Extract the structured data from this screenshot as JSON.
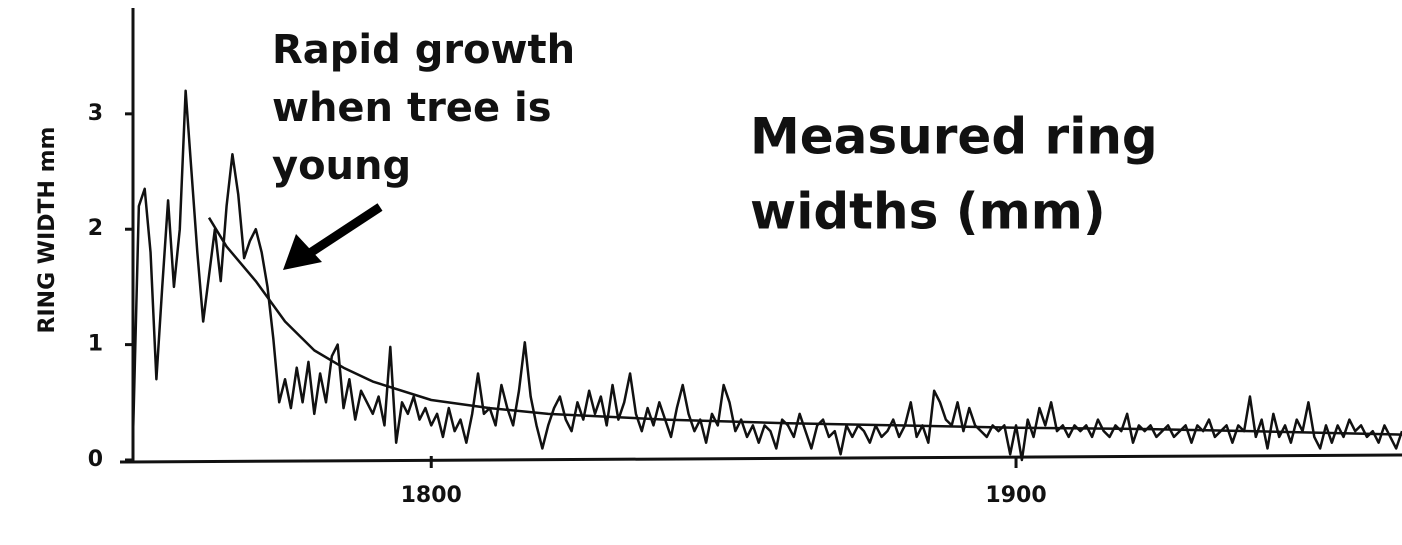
{
  "chart_data": {
    "type": "line",
    "y_label": "RING WIDTH mm",
    "annotations": [
      {
        "lines": [
          "Rapid growth",
          "when tree is",
          "young"
        ]
      },
      {
        "lines": [
          "Measured ring",
          "widths (mm)"
        ]
      }
    ],
    "xlim": [
      1749,
      1966
    ],
    "ylim": [
      0,
      3.9
    ],
    "xticks": [
      1800,
      1900
    ],
    "yticks": [
      0,
      1,
      2,
      3
    ],
    "series": [
      {
        "color": "#111111",
        "x": [
          1749,
          1750,
          1751,
          1752,
          1753,
          1754,
          1755,
          1756,
          1757,
          1758,
          1759,
          1760,
          1761,
          1762,
          1763,
          1764,
          1765,
          1766,
          1767,
          1768,
          1769,
          1770,
          1771,
          1772,
          1773,
          1774,
          1775,
          1776,
          1777,
          1778,
          1779,
          1780,
          1781,
          1782,
          1783,
          1784,
          1785,
          1786,
          1787,
          1788,
          1789,
          1790,
          1791,
          1792,
          1793,
          1794,
          1795,
          1796,
          1797,
          1798,
          1799,
          1800,
          1801,
          1802,
          1803,
          1804,
          1805,
          1806,
          1807,
          1808,
          1809,
          1810,
          1811,
          1812,
          1813,
          1814,
          1815,
          1816,
          1817,
          1818,
          1819,
          1820,
          1821,
          1822,
          1823,
          1824,
          1825,
          1826,
          1827,
          1828,
          1829,
          1830,
          1831,
          1832,
          1833,
          1834,
          1835,
          1836,
          1837,
          1838,
          1839,
          1840,
          1841,
          1842,
          1843,
          1844,
          1845,
          1846,
          1847,
          1848,
          1849,
          1850,
          1851,
          1852,
          1853,
          1854,
          1855,
          1856,
          1857,
          1858,
          1859,
          1860,
          1861,
          1862,
          1863,
          1864,
          1865,
          1866,
          1867,
          1868,
          1869,
          1870,
          1871,
          1872,
          1873,
          1874,
          1875,
          1876,
          1877,
          1878,
          1879,
          1880,
          1881,
          1882,
          1883,
          1884,
          1885,
          1886,
          1887,
          1888,
          1889,
          1890,
          1891,
          1892,
          1893,
          1894,
          1895,
          1896,
          1897,
          1898,
          1899,
          1900,
          1901,
          1902,
          1903,
          1904,
          1905,
          1906,
          1907,
          1908,
          1909,
          1910,
          1911,
          1912,
          1913,
          1914,
          1915,
          1916,
          1917,
          1918,
          1919,
          1920,
          1921,
          1922,
          1923,
          1924,
          1925,
          1926,
          1927,
          1928,
          1929,
          1930,
          1931,
          1932,
          1933,
          1934,
          1935,
          1936,
          1937,
          1938,
          1939,
          1940,
          1941,
          1942,
          1943,
          1944,
          1945,
          1946,
          1947,
          1948,
          1949,
          1950,
          1951,
          1952,
          1953,
          1954,
          1955,
          1956,
          1957,
          1958,
          1959,
          1960,
          1961,
          1962,
          1963,
          1964,
          1965,
          1966
        ],
        "values": [
          0.2,
          2.2,
          2.35,
          1.8,
          0.7,
          1.5,
          2.25,
          1.5,
          2.0,
          3.2,
          2.5,
          1.8,
          1.2,
          1.6,
          2.0,
          1.55,
          2.2,
          2.65,
          2.3,
          1.75,
          1.9,
          2.0,
          1.8,
          1.5,
          1.05,
          0.5,
          0.7,
          0.45,
          0.8,
          0.5,
          0.85,
          0.4,
          0.75,
          0.5,
          0.9,
          1.0,
          0.45,
          0.7,
          0.35,
          0.6,
          0.5,
          0.4,
          0.55,
          0.3,
          0.98,
          0.15,
          0.5,
          0.4,
          0.55,
          0.35,
          0.45,
          0.3,
          0.4,
          0.2,
          0.45,
          0.25,
          0.35,
          0.15,
          0.4,
          0.75,
          0.4,
          0.45,
          0.3,
          0.65,
          0.45,
          0.3,
          0.6,
          1.02,
          0.55,
          0.3,
          0.1,
          0.3,
          0.45,
          0.55,
          0.35,
          0.25,
          0.5,
          0.35,
          0.6,
          0.4,
          0.55,
          0.3,
          0.65,
          0.35,
          0.5,
          0.75,
          0.4,
          0.25,
          0.45,
          0.3,
          0.5,
          0.35,
          0.2,
          0.45,
          0.65,
          0.4,
          0.25,
          0.35,
          0.15,
          0.4,
          0.3,
          0.65,
          0.5,
          0.25,
          0.35,
          0.2,
          0.3,
          0.15,
          0.3,
          0.25,
          0.1,
          0.35,
          0.3,
          0.2,
          0.4,
          0.25,
          0.1,
          0.3,
          0.35,
          0.2,
          0.25,
          0.05,
          0.3,
          0.2,
          0.3,
          0.25,
          0.15,
          0.3,
          0.2,
          0.25,
          0.35,
          0.2,
          0.3,
          0.5,
          0.2,
          0.3,
          0.15,
          0.6,
          0.5,
          0.35,
          0.3,
          0.5,
          0.25,
          0.45,
          0.3,
          0.25,
          0.2,
          0.3,
          0.25,
          0.3,
          0.05,
          0.3,
          0.0,
          0.35,
          0.2,
          0.45,
          0.3,
          0.5,
          0.25,
          0.3,
          0.2,
          0.3,
          0.25,
          0.3,
          0.2,
          0.35,
          0.25,
          0.2,
          0.3,
          0.25,
          0.4,
          0.15,
          0.3,
          0.25,
          0.3,
          0.2,
          0.25,
          0.3,
          0.2,
          0.25,
          0.3,
          0.15,
          0.3,
          0.25,
          0.35,
          0.2,
          0.25,
          0.3,
          0.15,
          0.3,
          0.25,
          0.55,
          0.2,
          0.35,
          0.1,
          0.4,
          0.2,
          0.3,
          0.15,
          0.35,
          0.25,
          0.5,
          0.2,
          0.1,
          0.3,
          0.15,
          0.3,
          0.2,
          0.35,
          0.25,
          0.3,
          0.2,
          0.25,
          0.15,
          0.3,
          0.2,
          0.1,
          0.25
        ]
      },
      {
        "color": "#111111",
        "x": [
          1762,
          1765,
          1770,
          1775,
          1780,
          1785,
          1790,
          1800,
          1810,
          1820,
          1840,
          1860,
          1880,
          1900,
          1920,
          1940,
          1966
        ],
        "values": [
          2.1,
          1.85,
          1.55,
          1.2,
          0.95,
          0.8,
          0.68,
          0.52,
          0.45,
          0.4,
          0.35,
          0.32,
          0.3,
          0.28,
          0.27,
          0.25,
          0.22
        ]
      }
    ]
  }
}
